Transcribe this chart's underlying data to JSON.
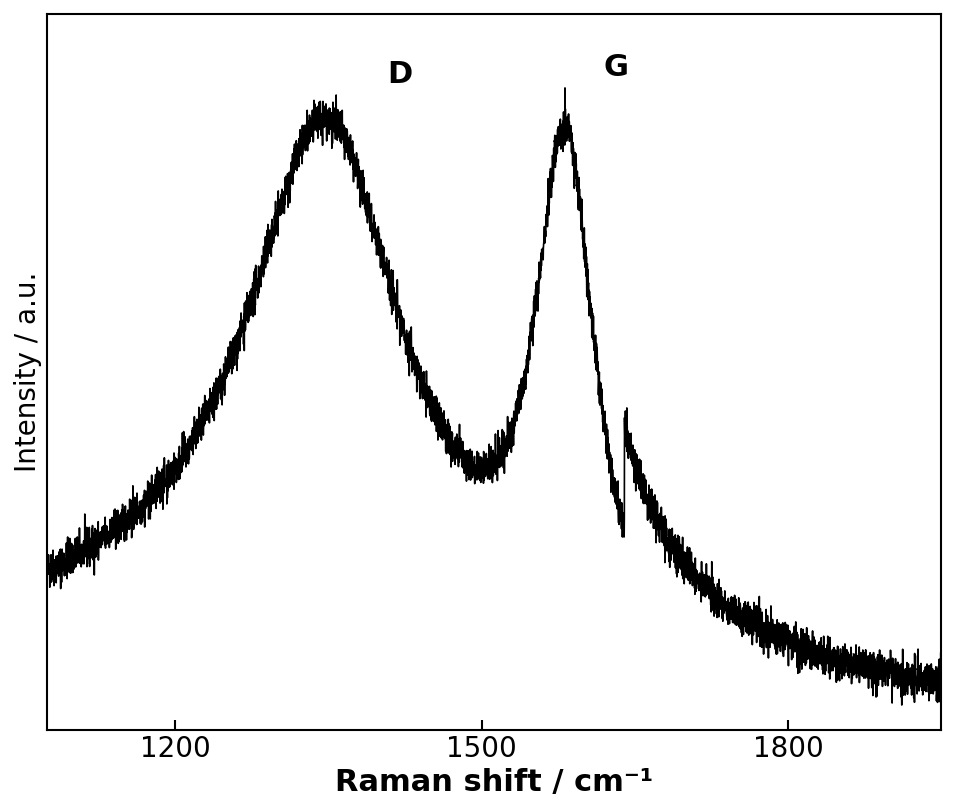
{
  "xlabel": "Raman shift / cm⁻¹",
  "ylabel": "Intensity / a.u.",
  "xlim": [
    1075,
    1950
  ],
  "xticks": [
    1200,
    1500,
    1800
  ],
  "D_label": "D",
  "G_label": "G",
  "line_color": "#000000",
  "line_width": 1.2,
  "xlabel_fontsize": 22,
  "ylabel_fontsize": 20,
  "tick_fontsize": 20,
  "label_fontsize": 22,
  "background_color": "#ffffff",
  "seed": 42
}
